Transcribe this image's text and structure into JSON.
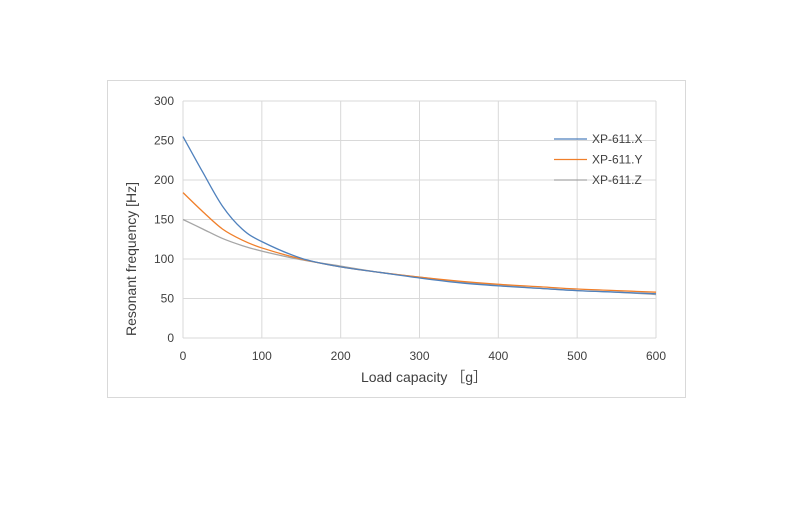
{
  "chart_data": {
    "type": "line",
    "title": "",
    "xlabel": "Load capacity ［g］",
    "ylabel": "Resonant  frequency [Hz]",
    "xlim": [
      0,
      600
    ],
    "ylim": [
      0,
      300
    ],
    "x_ticks": [
      "0",
      "100",
      "200",
      "300",
      "400",
      "500",
      "600"
    ],
    "y_ticks": [
      "0",
      "50",
      "100",
      "150",
      "200",
      "250",
      "300"
    ],
    "grid": true,
    "legend_position": "top-right",
    "x": [
      0,
      25,
      50,
      75,
      100,
      150,
      200,
      250,
      300,
      350,
      400,
      450,
      500,
      550,
      600
    ],
    "series": [
      {
        "name": "XP-611.X",
        "color": "#4f81bd",
        "values": [
          255,
          210,
          167,
          138,
          122,
          101,
          90,
          83,
          76,
          70,
          66,
          63,
          60,
          58,
          56
        ]
      },
      {
        "name": "XP-611.Y",
        "color": "#f07f2a",
        "values": [
          184,
          160,
          138,
          124,
          114,
          100,
          90,
          83,
          77,
          72,
          68,
          65,
          62,
          60,
          58
        ]
      },
      {
        "name": "XP-611.Z",
        "color": "#a6a6a6",
        "values": [
          150,
          138,
          126,
          117,
          110,
          99,
          91,
          83,
          77,
          71,
          67,
          63,
          60,
          58,
          55
        ]
      }
    ]
  }
}
